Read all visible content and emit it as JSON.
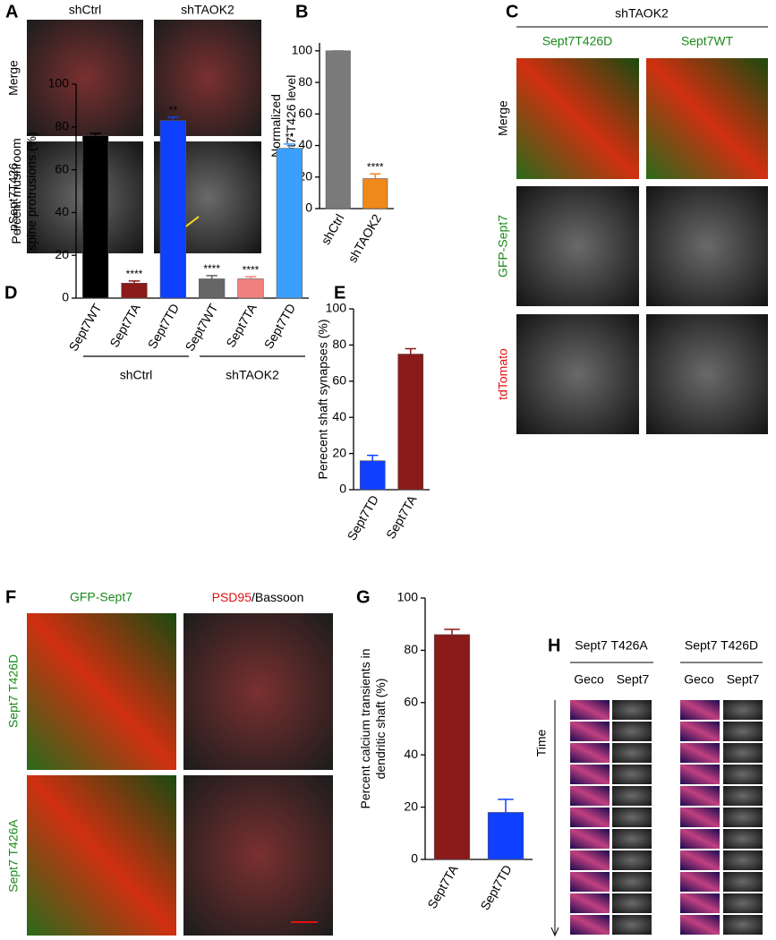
{
  "panels": {
    "A": {
      "label": "A",
      "columns": [
        "shCtrl",
        "shTAOK2"
      ],
      "rows": [
        "Merge",
        "pSept7T426"
      ]
    },
    "C": {
      "label": "C",
      "header": "shTAOK2",
      "columns": [
        "Sept7T426D",
        "Sept7WT"
      ],
      "rows": [
        "Merge",
        "GFP-Sept7",
        "tdTomato"
      ]
    },
    "F": {
      "label": "F",
      "columns": [
        "GFP-Sept7",
        "PSD95",
        "/Bassoon"
      ],
      "rows": [
        "Sept7 T426D",
        "Sept7 T426A"
      ]
    },
    "H": {
      "label": "H",
      "columns": [
        "Sept7 T426A",
        "Sept7 T426D"
      ],
      "subcolumns": [
        "Geco",
        "Sept7",
        "Geco",
        "Sept7"
      ],
      "axis_label": "Time"
    }
  },
  "chart_data": [
    {
      "type": "bar",
      "panel_label": "B",
      "y_label": [
        "Normalized",
        "pSept7-T426 level"
      ],
      "categories": [
        "shCtrl",
        "shTAOK2"
      ],
      "values": [
        100,
        19
      ],
      "errors": [
        0,
        3
      ],
      "annotations": [
        null,
        "****"
      ],
      "colors": [
        "#7a7a7a",
        "#f0891c"
      ],
      "ylim": [
        0,
        105
      ],
      "yticks": [
        0,
        20,
        40,
        60,
        80,
        100
      ]
    },
    {
      "type": "bar",
      "panel_label": "D",
      "y_label": [
        "Percent mushroom",
        "spine protrusions (%)"
      ],
      "categories": [
        "Sept7WT",
        "Sept7TA",
        "Sept7TD",
        "Sept7WT",
        "Sept7TA",
        "Sept7TD"
      ],
      "values": [
        76,
        7,
        83,
        9,
        9,
        70
      ],
      "errors": [
        1,
        1,
        1.5,
        1.5,
        1,
        2
      ],
      "annotations": [
        null,
        "****",
        "**",
        "****",
        "****",
        "**"
      ],
      "colors": [
        "#000000",
        "#8b1a1a",
        "#1040ff",
        "#666666",
        "#f08080",
        "#3aa0ff"
      ],
      "group_labels": [
        "shCtrl",
        "shTAOK2"
      ],
      "ylim": [
        0,
        100
      ],
      "yticks": [
        0,
        20,
        40,
        60,
        80,
        100
      ]
    },
    {
      "type": "bar",
      "panel_label": "E",
      "y_label": [
        "Perecent shaft synapses (%)"
      ],
      "categories": [
        "Sept7TD",
        "Sept7TA"
      ],
      "values": [
        16,
        75
      ],
      "errors": [
        3,
        3
      ],
      "colors": [
        "#1040ff",
        "#8b1a1a"
      ],
      "ylim": [
        0,
        100
      ],
      "yticks": [
        0,
        20,
        40,
        60,
        80,
        100
      ]
    },
    {
      "type": "bar",
      "panel_label": "G",
      "y_label": [
        "Percent calcium transients in",
        "dendritic shaft (%)"
      ],
      "categories": [
        "Sept7TA",
        "Sept7TD"
      ],
      "values": [
        86,
        18
      ],
      "errors": [
        2,
        5
      ],
      "colors": [
        "#8b1a1a",
        "#1040ff"
      ],
      "ylim": [
        0,
        100
      ],
      "yticks": [
        0,
        20,
        40,
        60,
        80,
        100
      ]
    }
  ]
}
